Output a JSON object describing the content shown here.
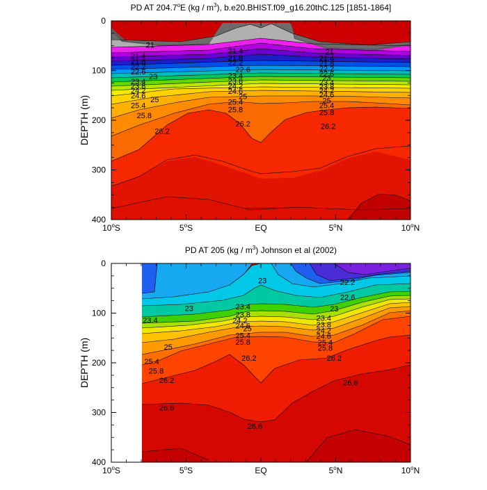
{
  "chart_data": [
    {
      "type": "contour",
      "title_main": "PD AT 204.7",
      "title_deg": "o",
      "title_mid": "E (kg / m",
      "title_exp": "3",
      "title_tail": "), b.e20.BHIST.f09_g16.20thC.125 [1851-1864]",
      "ylabel": "DEPTH (m)",
      "y_ticks": [
        "0",
        "100",
        "200",
        "300",
        "400"
      ],
      "y_values": [
        0,
        100,
        200,
        300,
        400
      ],
      "ylim": [
        0,
        400
      ],
      "xlim": [
        -10,
        10
      ],
      "x_values": [
        -10,
        -5,
        0,
        5,
        10
      ],
      "x_ticks": [
        {
          "num": "10",
          "deg": "o",
          "hem": "S"
        },
        {
          "num": "5",
          "deg": "o",
          "hem": "S"
        },
        {
          "num": "EQ",
          "deg": "",
          "hem": ""
        },
        {
          "num": "5",
          "deg": "o",
          "hem": "N"
        },
        {
          "num": "10",
          "deg": "o",
          "hem": "N"
        }
      ],
      "data_start_x": -10,
      "contour_labels": [
        {
          "x": -7.4,
          "y": 48,
          "text": "21"
        },
        {
          "x": -8.2,
          "y": 70,
          "text": "21.4"
        },
        {
          "x": -8.2,
          "y": 81,
          "text": "21.8"
        },
        {
          "x": -8.2,
          "y": 92,
          "text": "22.2"
        },
        {
          "x": -8.2,
          "y": 102,
          "text": "22.6"
        },
        {
          "x": -7.2,
          "y": 112,
          "text": "23"
        },
        {
          "x": -8.2,
          "y": 122,
          "text": "23.4"
        },
        {
          "x": -8.2,
          "y": 131,
          "text": "23.8"
        },
        {
          "x": -8.2,
          "y": 140,
          "text": "24.2"
        },
        {
          "x": -8.2,
          "y": 150,
          "text": "24.6"
        },
        {
          "x": -7.1,
          "y": 158,
          "text": "25"
        },
        {
          "x": -8.2,
          "y": 170,
          "text": "25.4"
        },
        {
          "x": -7.8,
          "y": 190,
          "text": "25.8"
        },
        {
          "x": -6.6,
          "y": 222,
          "text": "26.2"
        },
        {
          "x": -1.7,
          "y": 60,
          "text": "21.4"
        },
        {
          "x": -1.7,
          "y": 74,
          "text": "21.8"
        },
        {
          "x": -1.7,
          "y": 84,
          "text": "22.2"
        },
        {
          "x": -1.2,
          "y": 98,
          "text": "22.6"
        },
        {
          "x": -1.7,
          "y": 110,
          "text": "23.4"
        },
        {
          "x": -1.7,
          "y": 121,
          "text": "23.8"
        },
        {
          "x": -1.7,
          "y": 131,
          "text": "24.2"
        },
        {
          "x": -1.7,
          "y": 141,
          "text": "24.6"
        },
        {
          "x": -1.2,
          "y": 152,
          "text": "25"
        },
        {
          "x": -1.7,
          "y": 163,
          "text": "25.4"
        },
        {
          "x": -1.7,
          "y": 178,
          "text": "25.8"
        },
        {
          "x": -1.2,
          "y": 207,
          "text": "26.2"
        },
        {
          "x": 4.6,
          "y": 62,
          "text": "21"
        },
        {
          "x": 4.4,
          "y": 75,
          "text": "21.4"
        },
        {
          "x": 4.4,
          "y": 85,
          "text": "21.8"
        },
        {
          "x": 4.4,
          "y": 96,
          "text": "22.2"
        },
        {
          "x": 4.4,
          "y": 106,
          "text": "22.6"
        },
        {
          "x": 4.4,
          "y": 115,
          "text": "23"
        },
        {
          "x": 4.4,
          "y": 124,
          "text": "23.4"
        },
        {
          "x": 4.4,
          "y": 132,
          "text": "23.8"
        },
        {
          "x": 4.4,
          "y": 140,
          "text": "24.2"
        },
        {
          "x": 4.4,
          "y": 148,
          "text": "24.6"
        },
        {
          "x": 4.4,
          "y": 160,
          "text": "25"
        },
        {
          "x": 4.4,
          "y": 170,
          "text": "25.4"
        },
        {
          "x": 4.4,
          "y": 184,
          "text": "25.8"
        },
        {
          "x": 4.5,
          "y": 212,
          "text": "26.2"
        }
      ]
    },
    {
      "type": "contour",
      "title_main": "PD AT 205 (kg / m",
      "title_exp": "3",
      "title_tail": ") Johnson et al (2002)",
      "ylabel": "DEPTH (m)",
      "y_ticks": [
        "0",
        "100",
        "200",
        "300",
        "400"
      ],
      "y_values": [
        0,
        100,
        200,
        300,
        400
      ],
      "ylim": [
        0,
        400
      ],
      "xlim": [
        -10,
        10
      ],
      "x_values": [
        -10,
        -5,
        0,
        5,
        10
      ],
      "x_ticks": [
        {
          "num": "10",
          "deg": "o",
          "hem": "S"
        },
        {
          "num": "5",
          "deg": "o",
          "hem": "S"
        },
        {
          "num": "EQ",
          "deg": "",
          "hem": ""
        },
        {
          "num": "5",
          "deg": "o",
          "hem": "N"
        },
        {
          "num": "10",
          "deg": "o",
          "hem": "N"
        }
      ],
      "data_start_x": -8,
      "contour_labels": [
        {
          "x": 5.8,
          "y": 38,
          "text": "22.2"
        },
        {
          "x": 5.8,
          "y": 68,
          "text": "22.6"
        },
        {
          "x": 0.1,
          "y": 34,
          "text": "23"
        },
        {
          "x": -4.8,
          "y": 90,
          "text": "23"
        },
        {
          "x": -7.4,
          "y": 114,
          "text": "23.4"
        },
        {
          "x": 4.9,
          "y": 91,
          "text": "23"
        },
        {
          "x": -1.2,
          "y": 87,
          "text": "23.4"
        },
        {
          "x": -1.2,
          "y": 103,
          "text": "23.8"
        },
        {
          "x": -1.4,
          "y": 115,
          "text": "24.2"
        },
        {
          "x": -1.2,
          "y": 125,
          "text": "24.6"
        },
        {
          "x": -0.9,
          "y": 131,
          "text": "25"
        },
        {
          "x": -1.2,
          "y": 145,
          "text": "25.4"
        },
        {
          "x": -1.2,
          "y": 158,
          "text": "25.8"
        },
        {
          "x": -0.8,
          "y": 190,
          "text": "26.2"
        },
        {
          "x": 4.2,
          "y": 110,
          "text": "23.4"
        },
        {
          "x": 4.2,
          "y": 123,
          "text": "23.8"
        },
        {
          "x": 4.2,
          "y": 135,
          "text": "24.2"
        },
        {
          "x": 4.2,
          "y": 146,
          "text": "24.6"
        },
        {
          "x": 4.3,
          "y": 159,
          "text": "25.4"
        },
        {
          "x": 4.3,
          "y": 170,
          "text": "25.8"
        },
        {
          "x": 4.9,
          "y": 190,
          "text": "26.2"
        },
        {
          "x": -6.2,
          "y": 168,
          "text": "25"
        },
        {
          "x": -7.3,
          "y": 197,
          "text": "25.4"
        },
        {
          "x": -7.0,
          "y": 216,
          "text": "25.8"
        },
        {
          "x": -6.3,
          "y": 235,
          "text": "26.2"
        },
        {
          "x": -6.3,
          "y": 290,
          "text": "26.6"
        },
        {
          "x": -0.4,
          "y": 327,
          "text": "26.6"
        },
        {
          "x": 6.0,
          "y": 240,
          "text": "26.6"
        }
      ]
    }
  ]
}
